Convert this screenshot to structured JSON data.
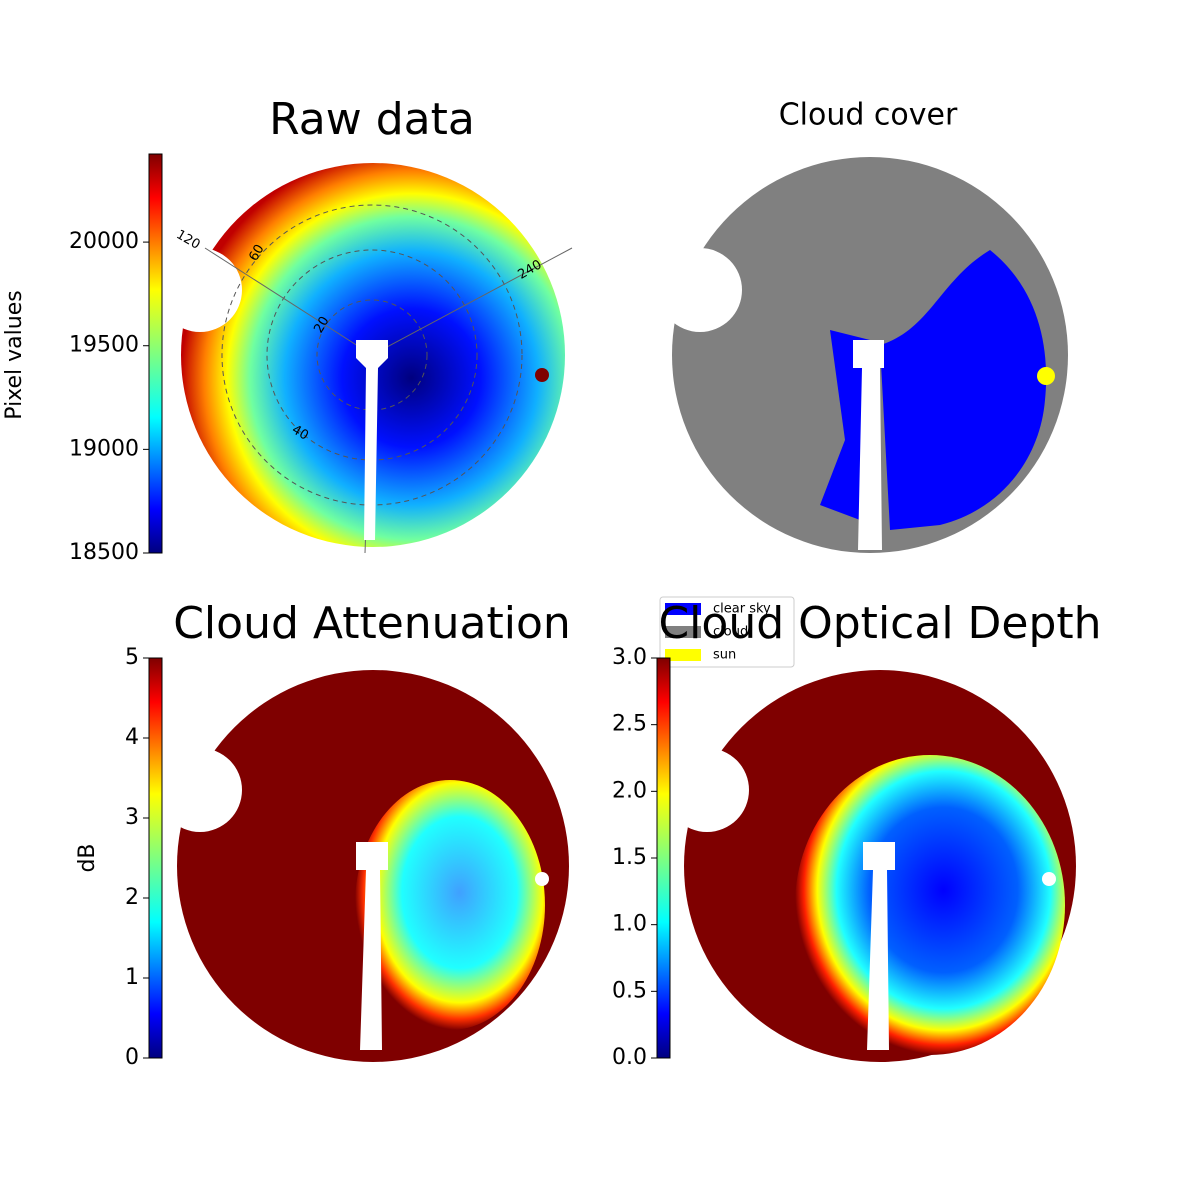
{
  "chart_data": [
    {
      "type": "heatmap",
      "title": "Raw data",
      "colorbar": {
        "label": "Pixel values",
        "lim": [
          18500,
          20425
        ],
        "ticks": [
          18500,
          19000,
          19500,
          20000
        ]
      },
      "annotations": [
        "120",
        "60",
        "240",
        "20",
        "40"
      ]
    },
    {
      "type": "categorical",
      "title": "Cloud cover",
      "legend": [
        {
          "name": "clear sky",
          "color": "#0000ff"
        },
        {
          "name": "cloud",
          "color": "#808080"
        },
        {
          "name": "sun",
          "color": "#ffff00"
        }
      ]
    },
    {
      "type": "heatmap",
      "title": "Cloud Attenuation",
      "colorbar": {
        "label": "dB",
        "lim": [
          0,
          5
        ],
        "ticks": [
          0,
          1,
          2,
          3,
          4,
          5
        ]
      }
    },
    {
      "type": "heatmap",
      "title": "Cloud Optical Depth",
      "colorbar": {
        "lim": [
          0,
          3
        ],
        "ticks": [
          {
            "value": 0,
            "label": "0.0"
          },
          {
            "value": 0.5,
            "label": "0.5"
          },
          {
            "value": 1,
            "label": "1.0"
          },
          {
            "value": 1.5,
            "label": "1.5"
          },
          {
            "value": 2,
            "label": "2.0"
          },
          {
            "value": 2.5,
            "label": "2.5"
          },
          {
            "value": 3,
            "label": "3.0"
          }
        ]
      }
    }
  ]
}
